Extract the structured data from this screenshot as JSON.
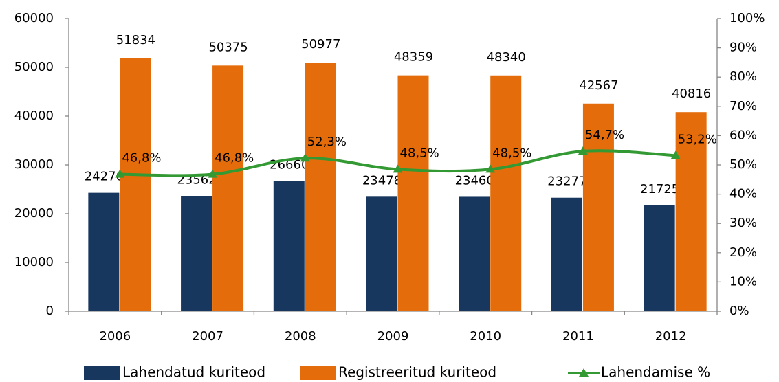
{
  "chart_data": {
    "type": "bar",
    "categories": [
      "2006",
      "2007",
      "2008",
      "2009",
      "2010",
      "2011",
      "2012"
    ],
    "series": [
      {
        "name": "Lahendatud kuriteod",
        "color": "#17375e",
        "values": [
          24276,
          23562,
          26660,
          23478,
          23460,
          23277,
          21725
        ]
      },
      {
        "name": "Registreeritud kuriteod",
        "color": "#e46c0a",
        "values": [
          51834,
          50375,
          50977,
          48359,
          48340,
          42567,
          40816
        ]
      },
      {
        "name": "Lahendamise %",
        "color": "#339933",
        "type": "line",
        "axis": "y2",
        "values": [
          46.8,
          46.8,
          52.3,
          48.5,
          48.5,
          54.7,
          53.2
        ],
        "value_labels": [
          "46,8%",
          "46,8%",
          "52,3%",
          "48,5%",
          "48,5%",
          "54,7%",
          "53,2%"
        ]
      }
    ],
    "ylim": [
      0,
      60000
    ],
    "yticks": [
      0,
      10000,
      20000,
      30000,
      40000,
      50000,
      60000
    ],
    "y2lim": [
      0,
      100
    ],
    "y2ticks": [
      {
        "value": 0,
        "label": "0%"
      },
      {
        "value": 10,
        "label": "10%"
      },
      {
        "value": 20,
        "label": "20%"
      },
      {
        "value": 30,
        "label": "30%"
      },
      {
        "value": 40,
        "label": "40%"
      },
      {
        "value": 50,
        "label": "50%"
      },
      {
        "value": 60,
        "label": "60%"
      },
      {
        "value": 70,
        "label": "70%"
      },
      {
        "value": 80,
        "label": "80%"
      },
      {
        "value": 90,
        "label": "90%"
      },
      {
        "value": 100,
        "label": "100%"
      }
    ],
    "legend": "bottom",
    "grid": false
  }
}
